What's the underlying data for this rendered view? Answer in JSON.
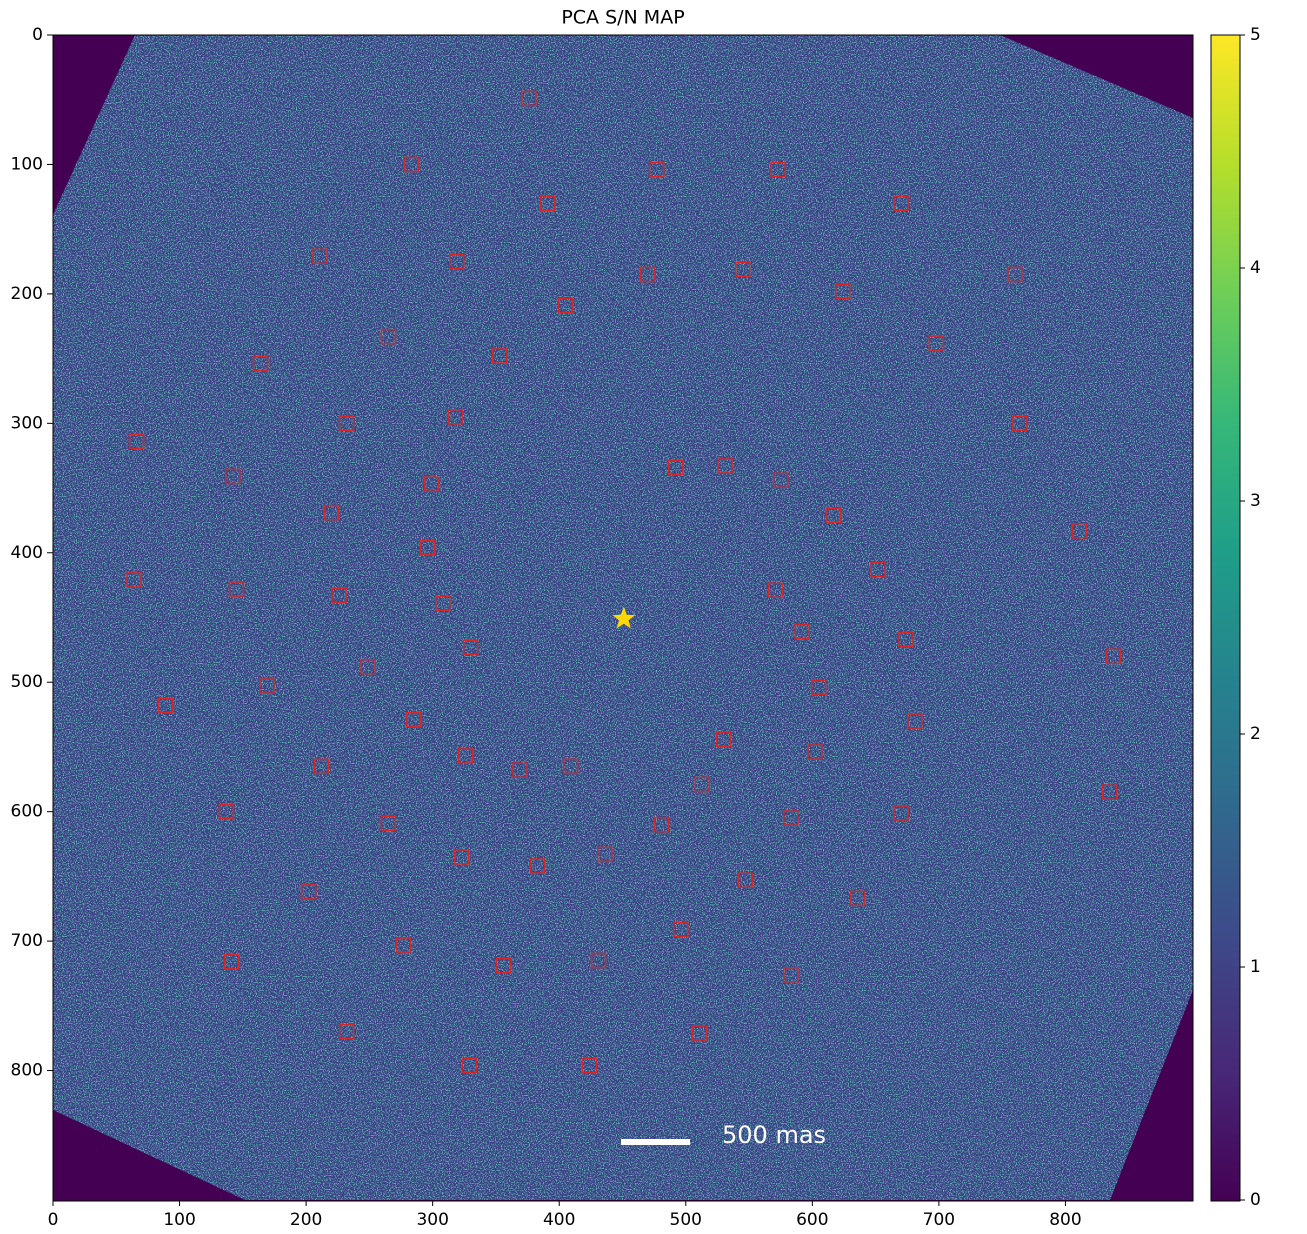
{
  "chart_data": {
    "type": "heatmap",
    "title": "PCA S/N MAP",
    "xlim": [
      0,
      900
    ],
    "ylim": [
      900,
      0
    ],
    "xticks": [
      0,
      100,
      200,
      300,
      400,
      500,
      600,
      700,
      800
    ],
    "yticks": [
      0,
      100,
      200,
      300,
      400,
      500,
      600,
      700,
      800
    ],
    "colorbar": {
      "colormap": "viridis",
      "lim": [
        0,
        5
      ],
      "ticks": [
        0,
        1,
        2,
        3,
        4,
        5
      ]
    },
    "markers": {
      "color": "#d62728",
      "x": [
        376,
        283,
        477,
        573,
        391,
        670,
        211,
        319,
        470,
        545,
        760,
        624,
        405,
        265,
        698,
        353,
        164,
        66,
        232,
        318,
        764,
        492,
        531,
        575,
        142,
        299,
        220,
        617,
        811,
        296,
        652,
        64,
        145,
        226,
        308,
        571,
        592,
        674,
        330,
        838,
        249,
        169,
        605,
        89,
        285,
        681,
        530,
        602,
        326,
        212,
        369,
        409,
        513,
        835,
        137,
        670,
        583,
        481,
        265,
        436,
        323,
        383,
        547,
        202,
        636,
        496,
        277,
        141,
        431,
        356,
        583,
        232,
        511,
        329,
        424
      ],
      "y": [
        49,
        100,
        104,
        104,
        130,
        130,
        171,
        175,
        185,
        181,
        185,
        198,
        209,
        233,
        238,
        248,
        254,
        314,
        300,
        295,
        300,
        334,
        333,
        344,
        341,
        347,
        369,
        371,
        383,
        396,
        413,
        421,
        428,
        433,
        439,
        429,
        461,
        467,
        473,
        480,
        488,
        503,
        504,
        518,
        529,
        530,
        544,
        554,
        557,
        565,
        568,
        565,
        579,
        585,
        600,
        601,
        605,
        610,
        609,
        633,
        635,
        642,
        653,
        662,
        667,
        691,
        703,
        716,
        715,
        719,
        726,
        770,
        771,
        796,
        796
      ]
    },
    "star": {
      "x": 451,
      "y": 451,
      "color": "#ffd700"
    },
    "scalebar_label": "500 mas"
  }
}
